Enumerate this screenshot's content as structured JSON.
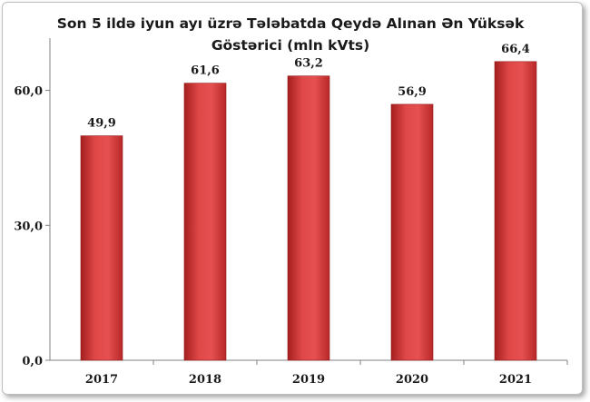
{
  "chart_data": {
    "type": "bar",
    "title": "Son 5 ildə iyun ayı üzrə Tələbatda Qeydə Alınan Ən Yüksək Göstərici (mln kVts)",
    "categories": [
      "2017",
      "2018",
      "2019",
      "2020",
      "2021"
    ],
    "values": [
      49.9,
      61.6,
      63.2,
      56.9,
      66.4
    ],
    "data_labels": [
      "49,9",
      "61,6",
      "63,2",
      "56,9",
      "66,4"
    ],
    "yticks": [
      0,
      30,
      60
    ],
    "ytick_labels": [
      "0,0",
      "30,0",
      "60,0"
    ],
    "ylim": [
      0,
      70
    ],
    "xlabel": "",
    "ylabel": "",
    "grid": false,
    "bar_color": "#d43a3a"
  }
}
